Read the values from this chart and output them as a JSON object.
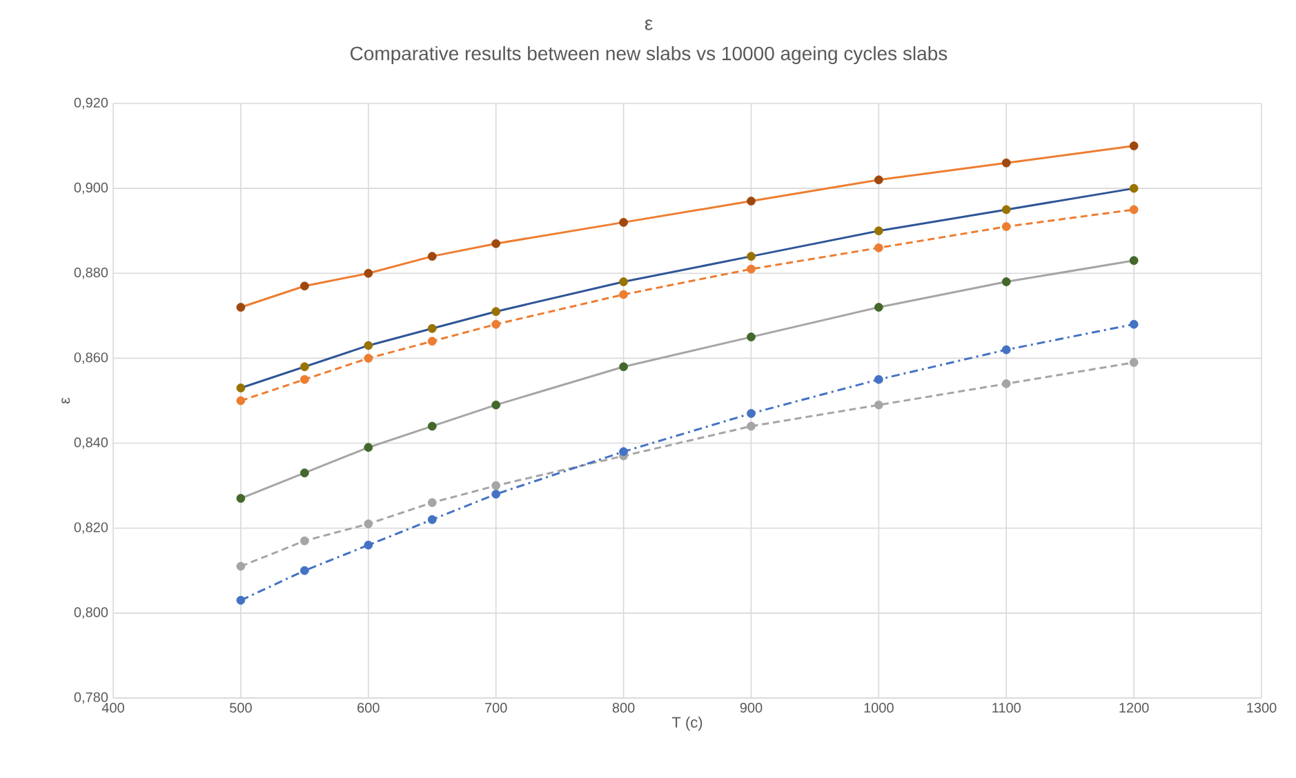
{
  "chart_data": {
    "type": "line",
    "title": "ε",
    "subtitle": "Comparative results between new slabs vs 10000 ageing cycles slabs",
    "xlabel": "T (c)",
    "ylabel": "ε",
    "x": [
      500,
      550,
      600,
      650,
      700,
      800,
      900,
      1000,
      1100,
      1200
    ],
    "series": [
      {
        "color": "#ed7d31",
        "colors": [
          "#9e480e",
          "#9e480e",
          "#9e480e",
          "#9e480e",
          "#9e480e",
          "#9e480e",
          "#9e480e",
          "#9e480e",
          "#9e480e",
          "#9e480e"
        ],
        "line_style": "solid",
        "values": [
          0.872,
          0.877,
          0.88,
          0.884,
          0.887,
          0.892,
          0.897,
          0.902,
          0.906,
          0.91
        ]
      },
      {
        "color": "#2f5597",
        "colors": [
          "#997300",
          "#997300",
          "#997300",
          "#997300",
          "#997300",
          "#997300",
          "#997300",
          "#997300",
          "#997300",
          "#997300"
        ],
        "line_style": "solid",
        "values": [
          0.853,
          0.858,
          0.863,
          0.867,
          0.871,
          0.878,
          0.884,
          0.89,
          0.895,
          0.9
        ]
      },
      {
        "color": "#ed7d31",
        "line_style": "dashed",
        "values": [
          0.85,
          0.855,
          0.86,
          0.864,
          0.868,
          0.875,
          0.881,
          0.886,
          0.891,
          0.895
        ]
      },
      {
        "color": "#a5a5a5",
        "colors": [
          "#43682b",
          "#43682b",
          "#43682b",
          "#43682b",
          "#43682b",
          "#43682b",
          "#43682b",
          "#43682b",
          "#43682b",
          "#43682b"
        ],
        "line_style": "solid",
        "values": [
          0.827,
          0.833,
          0.839,
          0.844,
          0.849,
          0.858,
          0.865,
          0.872,
          0.878,
          0.883
        ]
      },
      {
        "color": "#a5a5a5",
        "line_style": "dashed",
        "values": [
          0.811,
          0.817,
          0.821,
          0.826,
          0.83,
          0.837,
          0.844,
          0.849,
          0.854,
          0.859
        ]
      },
      {
        "color": "#4472c4",
        "line_style": "dashdot",
        "values": [
          0.803,
          0.81,
          0.816,
          0.822,
          0.828,
          0.838,
          0.847,
          0.855,
          0.862,
          0.868
        ]
      }
    ],
    "xlim": [
      400,
      1300
    ],
    "xticks": [
      400,
      500,
      600,
      700,
      800,
      900,
      1000,
      1100,
      1200,
      1300
    ],
    "ylim": [
      0.78,
      0.92
    ],
    "yticks": [
      {
        "value": 0.78,
        "label": "0,780"
      },
      {
        "value": 0.8,
        "label": "0,800"
      },
      {
        "value": 0.82,
        "label": "0,820"
      },
      {
        "value": 0.84,
        "label": "0,840"
      },
      {
        "value": 0.86,
        "label": "0,860"
      },
      {
        "value": 0.88,
        "label": "0,880"
      },
      {
        "value": 0.9,
        "label": "0,900"
      },
      {
        "value": 0.92,
        "label": "0,920"
      }
    ],
    "grid": true,
    "marker": "circle"
  }
}
